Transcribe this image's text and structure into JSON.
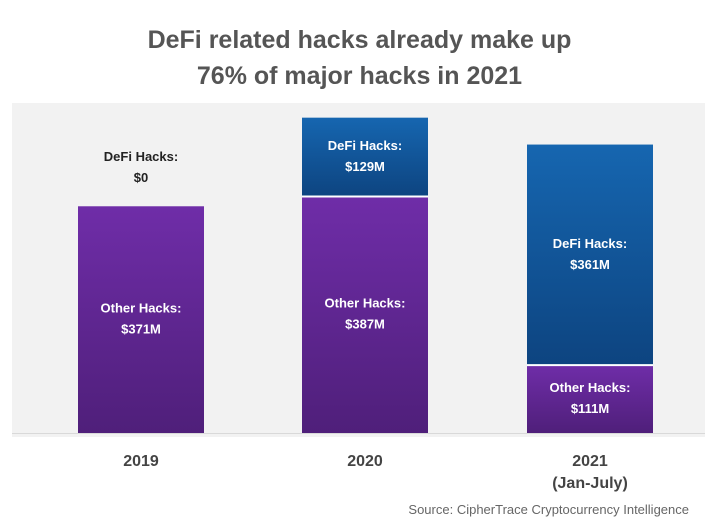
{
  "title_line1": "DeFi related hacks already make up",
  "title_line2": "76% of major hacks in 2021",
  "source": "Source: CipherTrace Cryptocurrency Intelligence",
  "colors": {
    "other": "#6f2da8",
    "other_dark": "#4f1f7a",
    "defi": "#1666b0",
    "defi_dark": "#0d4480",
    "background": "#f2f2f2"
  },
  "chart_data": {
    "type": "bar",
    "stacked": true,
    "title": "DeFi related hacks already make up 76% of major hacks in 2021",
    "categories": [
      "2019",
      "2020",
      "2021"
    ],
    "category_sublabels": [
      "",
      "",
      "(Jan-July)"
    ],
    "series": [
      {
        "name": "Other Hacks",
        "values": [
          371,
          387,
          111
        ],
        "labels": [
          "Other Hacks:\n$371M",
          "Other Hacks:\n$387M",
          "Other Hacks:\n$111M"
        ]
      },
      {
        "name": "DeFi Hacks",
        "values": [
          0,
          129,
          361
        ],
        "labels": [
          "DeFi Hacks:\n$0",
          "DeFi Hacks:\n$129M",
          "DeFi Hacks:\n$361M"
        ]
      }
    ],
    "units": "$M",
    "ylim": [
      0,
      540
    ],
    "grid": false,
    "legend": "none"
  }
}
